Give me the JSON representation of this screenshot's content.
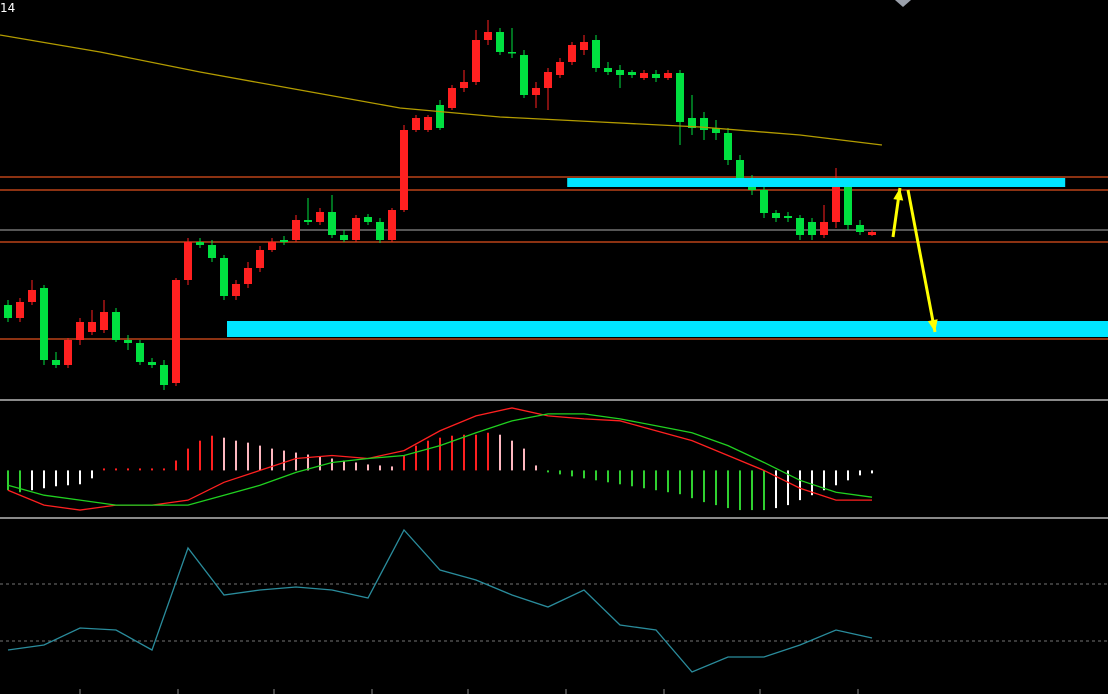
{
  "corner_label": "14",
  "chart_data": [
    {
      "type": "candlestick",
      "xlim": [
        -0.667,
        91.667
      ],
      "ylim": [
        0,
        400
      ],
      "up_color": "#ff2020",
      "down_color": "#00e040",
      "open": [
        95,
        82,
        98,
        112,
        40,
        35,
        60,
        68,
        70,
        88,
        60,
        57,
        38,
        35,
        17,
        120,
        158,
        155,
        142,
        104,
        116,
        132,
        150,
        160,
        160,
        180,
        178,
        188,
        165,
        160,
        183,
        178,
        160,
        190,
        270,
        270,
        295,
        292,
        312,
        318,
        360,
        368,
        348,
        345,
        305,
        312,
        325,
        338,
        350,
        360,
        332,
        330,
        328,
        322,
        326,
        322,
        327,
        282,
        282,
        272,
        267,
        240,
        222,
        210,
        187,
        184,
        182,
        178,
        165,
        178,
        215,
        175,
        165
      ],
      "close": [
        82,
        98,
        110,
        40,
        35,
        60,
        78,
        78,
        88,
        60,
        57,
        38,
        35,
        15,
        120,
        158,
        155,
        142,
        104,
        116,
        132,
        150,
        158,
        158,
        180,
        178,
        188,
        165,
        160,
        182,
        178,
        160,
        190,
        270,
        282,
        283,
        272,
        312,
        318,
        360,
        368,
        348,
        348,
        305,
        312,
        328,
        338,
        355,
        358,
        332,
        328,
        325,
        325,
        327,
        322,
        327,
        278,
        272,
        270,
        267,
        240,
        222,
        210,
        187,
        182,
        182,
        165,
        165,
        178,
        215,
        175,
        168,
        168
      ],
      "high": [
        100,
        102,
        120,
        115,
        48,
        62,
        82,
        90,
        100,
        92,
        65,
        60,
        42,
        40,
        122,
        162,
        162,
        160,
        145,
        120,
        138,
        154,
        162,
        164,
        185,
        202,
        192,
        205,
        170,
        185,
        186,
        182,
        192,
        275,
        285,
        285,
        300,
        315,
        330,
        370,
        380,
        372,
        372,
        350,
        318,
        332,
        342,
        358,
        365,
        365,
        338,
        335,
        330,
        330,
        330,
        330,
        330,
        305,
        288,
        280,
        272,
        245,
        225,
        215,
        190,
        188,
        185,
        182,
        195,
        232,
        218,
        180,
        170
      ],
      "low": [
        78,
        78,
        95,
        35,
        32,
        32,
        55,
        65,
        67,
        58,
        50,
        35,
        32,
        10,
        14,
        115,
        152,
        138,
        100,
        100,
        112,
        128,
        148,
        155,
        158,
        175,
        175,
        162,
        158,
        158,
        175,
        157,
        158,
        188,
        268,
        268,
        270,
        290,
        308,
        315,
        355,
        345,
        342,
        302,
        292,
        290,
        322,
        335,
        345,
        328,
        325,
        312,
        322,
        320,
        318,
        320,
        255,
        265,
        260,
        260,
        235,
        218,
        205,
        182,
        178,
        178,
        160,
        160,
        162,
        172,
        170,
        165,
        164
      ],
      "lines": [
        {
          "color": "#b39c00",
          "x": [
            -0.667,
            7.67,
            16,
            24.33,
            32.67,
            41,
            49.33,
            57.67,
            66,
            72.83
          ],
          "values": [
            365,
            348,
            328,
            310,
            292,
            283,
            278,
            273,
            265,
            255
          ]
        }
      ],
      "levels": [
        {
          "value": 223,
          "color": "#e0501e"
        },
        {
          "value": 210,
          "color": "#e0501e"
        },
        {
          "value": 170,
          "color": "#8a8a8a"
        },
        {
          "value": 158,
          "color": "#e0501e"
        },
        {
          "value": 61,
          "color": "#e0501e"
        }
      ],
      "zones": [
        {
          "x": [
            46.6,
            88.1
          ],
          "values": [
            213,
            222
          ],
          "color": "#00e5ff"
        },
        {
          "x": [
            18.25,
            91.667
          ],
          "values": [
            63,
            79
          ],
          "color": "#00e5ff"
        }
      ],
      "arrows": [
        {
          "x": [
            73.75,
            74.33
          ],
          "values": [
            163,
            212
          ],
          "color": "#ffff00"
        },
        {
          "x": [
            75,
            77.25
          ],
          "values": [
            210,
            68
          ],
          "color": "#ffff00"
        }
      ]
    },
    {
      "type": "macd",
      "xlim": [
        -0.667,
        91.667
      ],
      "ylim": [
        -48,
        70
      ],
      "colors": {
        "rise_pos": "#ff2020",
        "fall_pos": "#ffb8c0",
        "fall_neg": "#30d030",
        "rise_neg": "#ffffff"
      },
      "histogram": [
        -20,
        -22,
        -20,
        -18,
        -16,
        -15,
        -14,
        -8,
        2,
        2,
        2,
        2,
        2,
        2,
        10,
        22,
        30,
        35,
        33,
        30,
        28,
        25,
        22,
        20,
        18,
        16,
        14,
        12,
        10,
        8,
        6,
        5,
        4,
        15,
        25,
        30,
        33,
        35,
        36,
        36,
        38,
        36,
        30,
        22,
        5,
        -2,
        -4,
        -6,
        -8,
        -10,
        -12,
        -14,
        -16,
        -18,
        -20,
        -22,
        -24,
        -28,
        -32,
        -35,
        -38,
        -40,
        -40,
        -40,
        -38,
        -35,
        -30,
        -25,
        -20,
        -15,
        -10,
        -5,
        -3
      ],
      "lines": [
        {
          "color": "#ff2020",
          "x": [
            0,
            3,
            6,
            9,
            12,
            15,
            18,
            21,
            24,
            27,
            30,
            33,
            36,
            39,
            42,
            45,
            48,
            51,
            54,
            57,
            60,
            63,
            66,
            69,
            72
          ],
          "values": [
            -20,
            -35,
            -40,
            -35,
            -35,
            -30,
            -12,
            0,
            12,
            15,
            12,
            20,
            40,
            55,
            63,
            55,
            52,
            50,
            40,
            30,
            15,
            0,
            -18,
            -30,
            -30
          ]
        },
        {
          "color": "#20d020",
          "x": [
            0,
            3,
            6,
            9,
            12,
            15,
            18,
            21,
            24,
            27,
            30,
            33,
            36,
            39,
            42,
            45,
            48,
            51,
            54,
            57,
            60,
            63,
            66,
            69,
            72
          ],
          "values": [
            -15,
            -25,
            -30,
            -35,
            -35,
            -35,
            -25,
            -15,
            -2,
            8,
            12,
            15,
            25,
            38,
            50,
            57,
            57,
            52,
            45,
            38,
            25,
            8,
            -10,
            -22,
            -27
          ]
        }
      ]
    },
    {
      "type": "oscillator",
      "xlim": [
        -0.667,
        91.667
      ],
      "ylim": [
        0,
        170
      ],
      "levels": [
        {
          "value": 106,
          "color": "#9a9a9a",
          "dashed": true
        },
        {
          "value": 49,
          "color": "#9a9a9a",
          "dashed": true
        }
      ],
      "lines": [
        {
          "color": "#2a8c9c",
          "x": [
            0,
            3,
            6,
            9,
            12,
            15,
            18,
            21,
            24,
            27,
            30,
            33,
            36,
            39,
            42,
            45,
            48,
            51,
            54,
            57,
            60,
            63,
            66,
            69,
            72
          ],
          "values": [
            40,
            45,
            62,
            60,
            40,
            142,
            95,
            100,
            103,
            100,
            92,
            160,
            120,
            110,
            95,
            83,
            100,
            65,
            60,
            18,
            33,
            33,
            45,
            60,
            52
          ]
        }
      ]
    }
  ]
}
